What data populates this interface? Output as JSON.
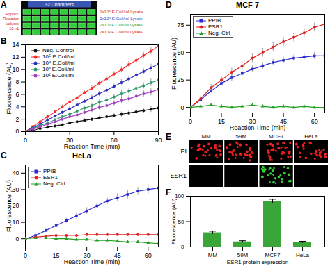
{
  "chart_data": [
    {
      "type": "image",
      "panel": "A",
      "header": "32 Chambers",
      "side_label": {
        "lines": [
          "Approx.",
          "Reaction",
          "Volume",
          "10 nL"
        ],
        "color": "#d42020"
      },
      "labels": [
        {
          "text": "2x10⁵ E.Coli/ml Lysate",
          "color": "#e02020"
        },
        {
          "text": "2x10⁴ E.Coli/ml Lysate",
          "color": "#3050d0"
        },
        {
          "text": "2x10³ E.Coli/ml Lysate",
          "color": "#20a040"
        },
        {
          "text": "2x10² E.Coli/ml Lysate",
          "color": "#e02020"
        }
      ]
    },
    {
      "type": "line",
      "panel": "B",
      "x_label": "Reaction Time (min)",
      "y_label": "Fluorescence (AU)",
      "x": [
        0,
        5,
        10,
        15,
        20,
        25,
        30,
        35,
        40,
        45,
        50,
        55,
        60,
        65,
        70,
        75,
        80,
        85,
        90
      ],
      "xlim": [
        0,
        90
      ],
      "xticks": [
        0,
        30,
        60,
        90
      ],
      "ylim": [
        0,
        14
      ],
      "yticks": [
        0,
        2,
        4,
        6,
        8,
        10,
        12,
        14
      ],
      "legend": "top-left",
      "series": [
        {
          "name": "Neg. Control",
          "color": "#111111",
          "marker": "circle",
          "values": [
            0,
            0.2,
            0.5,
            0.7,
            0.9,
            1.1,
            1.4,
            1.6,
            1.8,
            2.0,
            2.2,
            2.4,
            2.6,
            2.8,
            3.0,
            3.2,
            3.4,
            3.6,
            3.8
          ],
          "errors": [
            0.1,
            0.1,
            0.1,
            0.2,
            0.2,
            0.2,
            0.2,
            0.2,
            0.3,
            0.3,
            0.3,
            0.3,
            0.3,
            0.4,
            0.4,
            0.4,
            0.4,
            0.5,
            0.5
          ]
        },
        {
          "name": "10⁵ E.Coli/ml",
          "color": "#ff2a2a",
          "marker": "circle",
          "values": [
            0,
            0.8,
            1.6,
            2.4,
            3.2,
            4.0,
            4.8,
            5.5,
            6.3,
            7.0,
            7.8,
            8.5,
            9.3,
            10.0,
            10.8,
            11.5,
            12.3,
            13.0,
            13.8
          ],
          "errors": [
            0.1,
            0.1,
            0.2,
            0.2,
            0.2,
            0.3,
            0.3,
            0.3,
            0.3,
            0.4,
            0.4,
            0.4,
            0.4,
            0.5,
            0.5,
            0.5,
            0.5,
            0.6,
            0.6
          ]
        },
        {
          "name": "10⁴ E.Coli/ml",
          "color": "#2e2ebf",
          "marker": "circle",
          "values": [
            0,
            0.6,
            1.2,
            1.9,
            2.5,
            3.1,
            3.7,
            4.3,
            4.9,
            5.5,
            6.1,
            6.7,
            7.3,
            7.9,
            8.5,
            9.1,
            9.7,
            10.3,
            10.9
          ],
          "errors": [
            0.1,
            0.1,
            0.2,
            0.2,
            0.2,
            0.3,
            0.3,
            0.3,
            0.3,
            0.4,
            0.4,
            0.4,
            0.4,
            0.5,
            0.5,
            0.5,
            0.5,
            0.6,
            0.6
          ]
        },
        {
          "name": "10³ E.Coli/ml",
          "color": "#2f9a6a",
          "marker": "circle",
          "values": [
            0,
            0.5,
            1.0,
            1.4,
            1.9,
            2.4,
            2.8,
            3.3,
            3.8,
            4.2,
            4.7,
            5.1,
            5.6,
            6.1,
            6.5,
            7.0,
            7.4,
            7.9,
            8.3
          ],
          "errors": [
            0.1,
            0.1,
            0.2,
            0.2,
            0.2,
            0.3,
            0.3,
            0.3,
            0.3,
            0.4,
            0.4,
            0.4,
            0.4,
            0.5,
            0.5,
            0.5,
            0.5,
            0.6,
            0.6
          ]
        },
        {
          "name": "10² E.Coli/ml",
          "color": "#a040c0",
          "marker": "circle",
          "values": [
            0,
            0.4,
            0.8,
            1.2,
            1.6,
            2.0,
            2.4,
            2.7,
            3.1,
            3.5,
            3.9,
            4.2,
            4.6,
            5.0,
            5.3,
            5.7,
            6.1,
            6.4,
            6.8
          ],
          "errors": [
            0.1,
            0.1,
            0.2,
            0.2,
            0.2,
            0.3,
            0.3,
            0.3,
            0.3,
            0.4,
            0.4,
            0.4,
            0.4,
            0.5,
            0.5,
            0.5,
            0.5,
            0.6,
            0.6
          ]
        }
      ]
    },
    {
      "type": "line",
      "panel": "C",
      "title": "HeLa",
      "x_label": "Reaction Time (min)",
      "y_label": "Fluorescence (AU)",
      "x": [
        0,
        5,
        10,
        15,
        20,
        25,
        30,
        35,
        40,
        45,
        50,
        55,
        60,
        65
      ],
      "xlim": [
        0,
        65
      ],
      "xticks": [
        0,
        15,
        30,
        45,
        60
      ],
      "ylim": [
        -5,
        45
      ],
      "yticks": [
        0,
        10,
        20,
        30,
        40
      ],
      "legend": "top-left",
      "series": [
        {
          "name": "PPIB",
          "color": "#2a2ad0",
          "marker": "square",
          "values": [
            0,
            2,
            5,
            8,
            11,
            14,
            17,
            20,
            23,
            25,
            27,
            29,
            30,
            31
          ],
          "errors": [
            0.5,
            1,
            1,
            1.5,
            1.5,
            2,
            2,
            2,
            2,
            2.5,
            2.5,
            2.5,
            3,
            3
          ]
        },
        {
          "name": "ESR1",
          "color": "#e02020",
          "marker": "circle",
          "values": [
            0,
            1,
            1.5,
            2,
            2,
            2,
            2.5,
            2.5,
            2.5,
            2.5,
            2.5,
            2.5,
            2.5,
            2.5
          ],
          "errors": [
            0.5,
            0.5,
            0.5,
            0.5,
            0.5,
            0.5,
            0.5,
            0.5,
            0.5,
            0.5,
            0.5,
            0.5,
            0.5,
            0.5
          ]
        },
        {
          "name": "Neg. Ctrl",
          "color": "#20a020",
          "marker": "triangle",
          "values": [
            0,
            0.5,
            0.5,
            0,
            0,
            -0.5,
            -0.5,
            -1,
            -1,
            -1.5,
            -2,
            -2,
            -2.5,
            -3
          ],
          "errors": [
            0.5,
            0.5,
            0.5,
            0.5,
            0.5,
            0.5,
            0.5,
            0.5,
            0.5,
            0.5,
            0.5,
            0.5,
            0.5,
            0.5
          ]
        }
      ]
    },
    {
      "type": "line",
      "panel": "D",
      "title": "MCF 7",
      "x_label": "Reaction Time (min)",
      "y_label": "Fluorescence (AU)",
      "x": [
        0,
        5,
        10,
        15,
        20,
        25,
        30,
        35,
        40,
        45,
        50,
        55,
        60,
        65
      ],
      "xlim": [
        0,
        65
      ],
      "xticks": [
        0,
        15,
        30,
        45,
        60
      ],
      "ylim": [
        -5,
        85
      ],
      "yticks": [
        0,
        25,
        50,
        75
      ],
      "legend": "top-left",
      "series": [
        {
          "name": "PPIB",
          "color": "#2a2ad0",
          "marker": "square",
          "values": [
            0,
            7,
            15,
            22,
            27,
            31,
            35,
            38,
            41,
            43,
            45,
            46,
            47,
            47
          ],
          "errors": [
            1,
            2,
            2,
            2,
            3,
            3,
            3,
            3,
            3,
            3,
            3,
            3,
            3,
            3
          ]
        },
        {
          "name": "ESR1",
          "color": "#e02020",
          "marker": "circle",
          "values": [
            0,
            8,
            18,
            25,
            32,
            38,
            45,
            50,
            55,
            60,
            64,
            68,
            73,
            76
          ],
          "errors": [
            1,
            3,
            3,
            3,
            4,
            4,
            4,
            4,
            4,
            4,
            4,
            4,
            4,
            4
          ]
        },
        {
          "name": "Neg. Ctrl",
          "color": "#20a020",
          "marker": "triangle",
          "values": [
            0,
            1,
            2,
            1,
            0,
            1,
            2,
            1,
            0,
            1,
            0,
            1,
            0,
            0
          ],
          "errors": [
            1,
            1,
            1,
            1,
            1,
            1,
            1,
            1,
            1,
            1,
            1,
            1,
            1,
            1
          ]
        }
      ]
    },
    {
      "type": "image",
      "panel": "E",
      "columns": [
        "MM",
        "59M",
        "MCF7",
        "HeLa"
      ],
      "rows": [
        {
          "name": "PI",
          "color": "#e82020",
          "signal": [
            true,
            true,
            true,
            true
          ]
        },
        {
          "name": "ESR1",
          "color": "#30d030",
          "signal": [
            false,
            false,
            true,
            false
          ]
        }
      ]
    },
    {
      "type": "bar",
      "panel": "F",
      "x_label": "ESR1 protein expression",
      "y_label": "Fluorescence (AU)",
      "categories": [
        "MM",
        "59M",
        "MCF7",
        "HeLa"
      ],
      "values": [
        28,
        10,
        90,
        9
      ],
      "errors": [
        3,
        2,
        4,
        2
      ],
      "color": "#3aa63a",
      "ylim": [
        0,
        100
      ],
      "yticks": [
        0,
        50,
        100
      ]
    }
  ]
}
